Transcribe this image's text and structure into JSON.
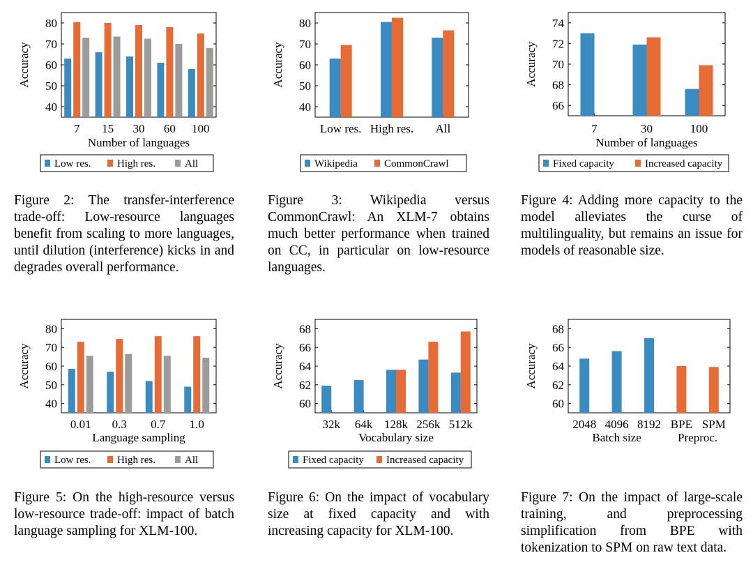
{
  "colors": {
    "blue": "#3a8bc2",
    "orange": "#e66b35",
    "gray": "#9b9b9b"
  },
  "figures": [
    {
      "caption": "Figure 2: The transfer-interference trade-off: Low-resource languages benefit from scaling to more languages, until dilution (interference) kicks in and degrades overall performance.",
      "chart_data": {
        "type": "bar",
        "ylabel": "Accuracy",
        "xlabel": "Number of languages",
        "ylim": [
          35,
          85
        ],
        "yticks": [
          40,
          50,
          60,
          70,
          80
        ],
        "categories": [
          "7",
          "15",
          "30",
          "60",
          "100"
        ],
        "series": [
          {
            "name": "Low res.",
            "color": "blue",
            "values": [
              63,
              66,
              64,
              61,
              58
            ]
          },
          {
            "name": "High res.",
            "color": "orange",
            "values": [
              80.5,
              80,
              79,
              78,
              75
            ]
          },
          {
            "name": "All",
            "color": "gray",
            "values": [
              73,
              73.5,
              72.5,
              70,
              68
            ]
          }
        ]
      }
    },
    {
      "caption": "Figure 3: Wikipedia versus CommonCrawl: An XLM-7 obtains much better performance when trained on CC, in particular on low-resource languages.",
      "chart_data": {
        "type": "bar",
        "ylabel": "Accuracy",
        "xlabel": "",
        "ylim": [
          35,
          85
        ],
        "yticks": [
          40,
          50,
          60,
          70,
          80
        ],
        "categories": [
          "Low res.",
          "High res.",
          "All"
        ],
        "series": [
          {
            "name": "Wikipedia",
            "color": "blue",
            "values": [
              63,
              80.5,
              73
            ]
          },
          {
            "name": "CommonCrawl",
            "color": "orange",
            "values": [
              69.5,
              82.5,
              76.5
            ]
          }
        ]
      }
    },
    {
      "caption": "Figure 4: Adding more capacity to the model alleviates the curse of multilinguality, but remains an issue for models of reasonable size.",
      "chart_data": {
        "type": "bar",
        "ylabel": "Accuracy",
        "xlabel": "Number of languages",
        "ylim": [
          65,
          75
        ],
        "yticks": [
          66,
          68,
          70,
          72,
          74
        ],
        "categories": [
          "7",
          "30",
          "100"
        ],
        "series": [
          {
            "name": "Fixed capacity",
            "color": "blue",
            "values": [
              73,
              71.9,
              67.6
            ]
          },
          {
            "name": "Increased capacity",
            "color": "orange",
            "values": [
              null,
              72.6,
              69.9
            ]
          }
        ]
      }
    },
    {
      "caption": "Figure 5: On the high-resource versus low-resource trade-off: impact of batch language sampling for XLM-100.",
      "chart_data": {
        "type": "bar",
        "ylabel": "Accuracy",
        "xlabel": "Language sampling",
        "ylim": [
          35,
          85
        ],
        "yticks": [
          40,
          50,
          60,
          70,
          80
        ],
        "categories": [
          "0.01",
          "0.3",
          "0.7",
          "1.0"
        ],
        "series": [
          {
            "name": "Low res.",
            "color": "blue",
            "values": [
              58.5,
              57,
              52,
              49
            ]
          },
          {
            "name": "High res.",
            "color": "orange",
            "values": [
              73,
              74.5,
              76,
              76
            ]
          },
          {
            "name": "All",
            "color": "gray",
            "values": [
              65.5,
              66.5,
              65.5,
              64.5
            ]
          }
        ]
      }
    },
    {
      "caption": "Figure 6: On the impact of vocabulary size at fixed capacity and with increasing capacity for XLM-100.",
      "chart_data": {
        "type": "bar",
        "ylabel": "Accuracy",
        "xlabel": "Vocabulary size",
        "ylim": [
          59,
          69
        ],
        "yticks": [
          60,
          62,
          64,
          66,
          68
        ],
        "categories": [
          "32k",
          "64k",
          "128k",
          "256k",
          "512k"
        ],
        "series": [
          {
            "name": "Fixed capacity",
            "color": "blue",
            "values": [
              61.9,
              62.5,
              63.6,
              64.7,
              63.3
            ]
          },
          {
            "name": "Increased capacity",
            "color": "orange",
            "values": [
              null,
              null,
              63.6,
              66.6,
              67.7
            ]
          }
        ]
      }
    },
    {
      "caption": "Figure 7: On the impact of large-scale training, and preprocessing simplification from BPE with tokenization to SPM on raw text data.",
      "chart_data": {
        "type": "bar",
        "ylabel": "Accuracy",
        "xlabel": "",
        "group_labels": [
          "Batch size",
          "Preproc."
        ],
        "ylim": [
          59,
          69
        ],
        "yticks": [
          60,
          62,
          64,
          66,
          68
        ],
        "categories": [
          "2048",
          "4096",
          "8192",
          "BPE",
          "SPM"
        ],
        "series": [
          {
            "name": "Batch size",
            "color": "blue",
            "values": [
              64.8,
              65.6,
              67,
              null,
              null
            ]
          },
          {
            "name": "Preproc.",
            "color": "orange",
            "values": [
              null,
              null,
              null,
              64,
              63.9
            ]
          }
        ]
      }
    }
  ]
}
